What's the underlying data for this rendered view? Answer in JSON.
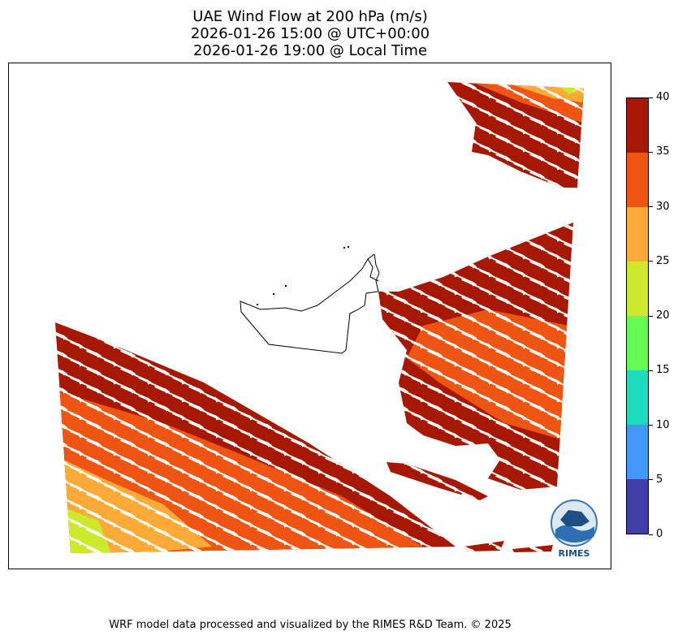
{
  "title": {
    "line1": "UAE Wind Flow at 200 hPa (m/s)",
    "line2": "2026-01-26 15:00 @ UTC+00:00",
    "line3": "2026-01-26 19:00 @ Local Time"
  },
  "colorbar": {
    "ticks": [
      "0",
      "5",
      "10",
      "15",
      "20",
      "25",
      "30",
      "35",
      "40"
    ],
    "colors": [
      "#3f3fa6",
      "#4396fc",
      "#1fdbbd",
      "#66fc56",
      "#cce92e",
      "#fdab36",
      "#ee5412",
      "#a71802"
    ]
  },
  "map": {
    "colors": {
      "dark_red": "#a71802",
      "orange_red": "#ee5412",
      "orange": "#fdab36",
      "yellow_green": "#cce92e",
      "arrow": "#ffffff"
    },
    "wind_direction": "west-northwest to east-southeast"
  },
  "logo": {
    "label": "RIMES"
  },
  "footer": "WRF model data processed and visualized by the RIMES R&D Team. © 2025"
}
